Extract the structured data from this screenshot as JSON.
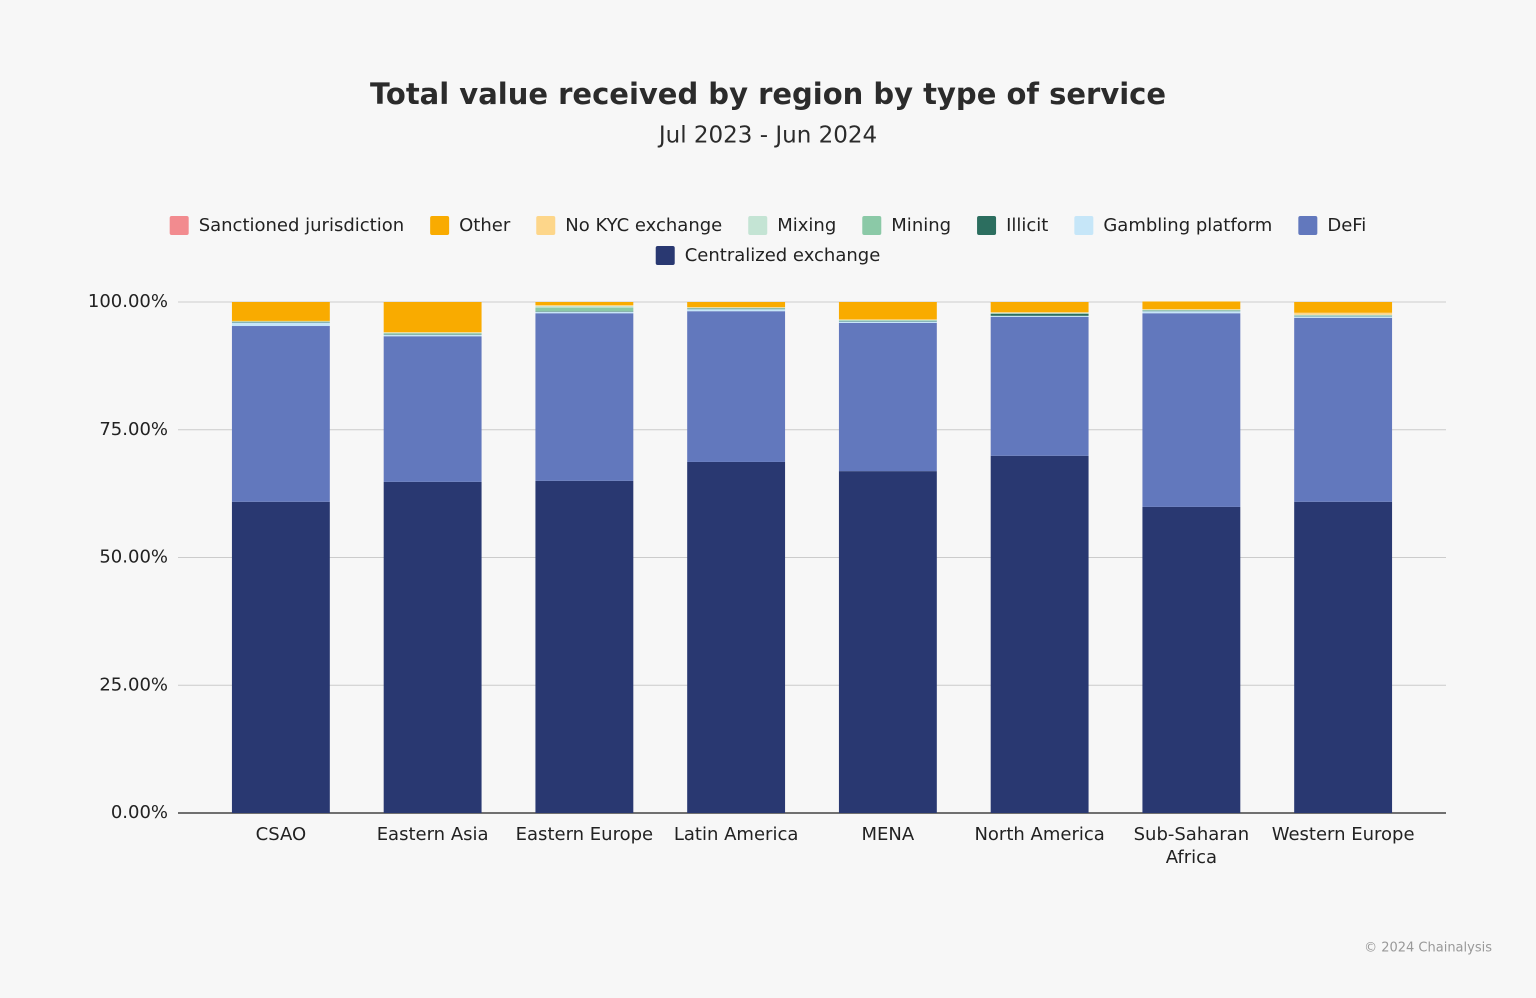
{
  "chart_data": {
    "type": "stacked-bar",
    "title": "Total value received by region by type of service",
    "subtitle": "Jul 2023 - Jun 2024",
    "categories": [
      "CSAO",
      "Eastern Asia",
      "Eastern Europe",
      "Latin America",
      "MENA",
      "North America",
      "Sub-Saharan Africa",
      "Western Europe"
    ],
    "series": [
      {
        "name": "Centralized exchange",
        "color": "#293871",
        "values": [
          60.9,
          64.8,
          65.0,
          68.7,
          66.9,
          69.9,
          59.9,
          60.9
        ]
      },
      {
        "name": "DeFi",
        "color": "#6278bd",
        "values": [
          34.4,
          28.5,
          32.8,
          29.5,
          29.0,
          27.2,
          37.9,
          36.0
        ]
      },
      {
        "name": "Gambling platform",
        "color": "#c6e6f8",
        "values": [
          0.7,
          0.3,
          0.3,
          0.4,
          0.3,
          0.2,
          0.4,
          0.3
        ]
      },
      {
        "name": "Illicit",
        "color": "#2c6e5f",
        "values": [
          0.1,
          0.1,
          0.1,
          0.1,
          0.1,
          0.4,
          0.1,
          0.1
        ]
      },
      {
        "name": "Mining",
        "color": "#8bc9a7",
        "values": [
          0.1,
          0.2,
          0.7,
          0.1,
          0.1,
          0.1,
          0.1,
          0.1
        ]
      },
      {
        "name": "Mixing",
        "color": "#c4e4d4",
        "values": [
          0.0,
          0.1,
          0.3,
          0.1,
          0.1,
          0.1,
          0.1,
          0.1
        ]
      },
      {
        "name": "No KYC exchange",
        "color": "#fdd68a",
        "values": [
          0.1,
          0.1,
          0.2,
          0.1,
          0.1,
          0.1,
          0.1,
          0.4
        ]
      },
      {
        "name": "Other",
        "color": "#f9ab00",
        "values": [
          3.7,
          5.9,
          0.6,
          1.0,
          3.4,
          2.0,
          1.5,
          2.1
        ]
      },
      {
        "name": "Sanctioned jurisdiction",
        "color": "#f28b8f",
        "values": [
          0.0,
          0.0,
          0.0,
          0.0,
          0.0,
          0.0,
          0.0,
          0.0
        ]
      }
    ],
    "ylim": [
      0,
      100
    ],
    "yticks": [
      {
        "value": 0,
        "label": "0.00%"
      },
      {
        "value": 25,
        "label": "25.00%"
      },
      {
        "value": 50,
        "label": "50.00%"
      },
      {
        "value": 75,
        "label": "75.00%"
      },
      {
        "value": 100,
        "label": "100.00%"
      }
    ],
    "grid": true,
    "legend": "top",
    "credit": "© 2024 Chainalysis"
  }
}
